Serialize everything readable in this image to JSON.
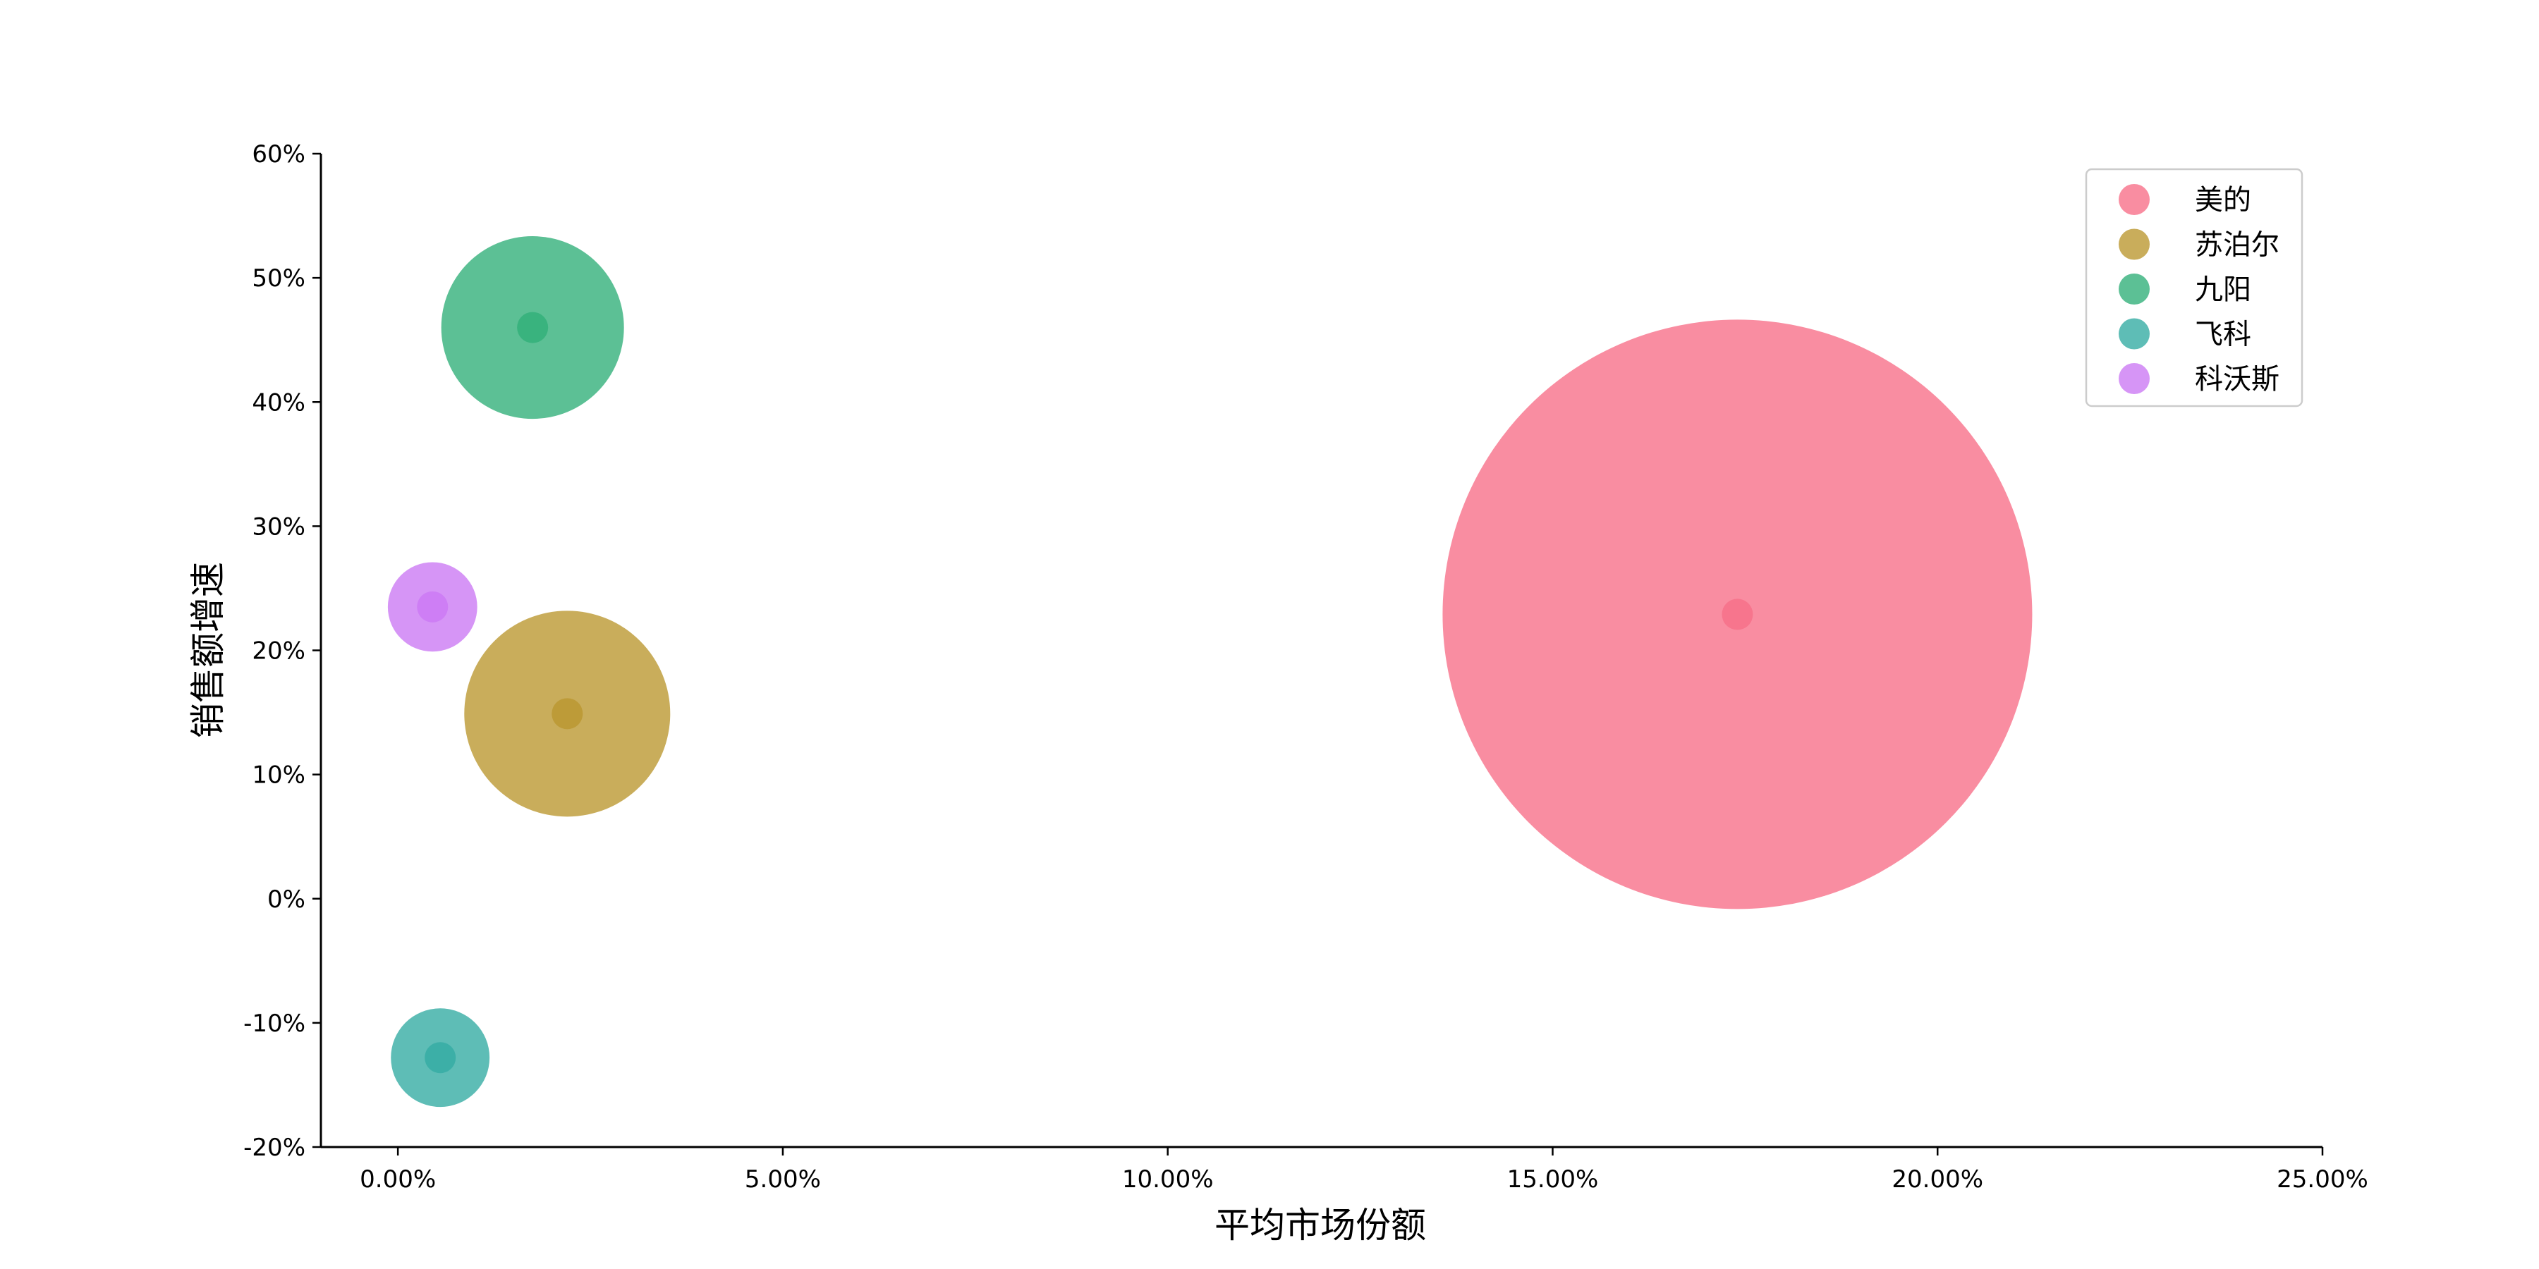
{
  "chart_data": {
    "type": "scatter",
    "title": "",
    "xlabel": "平均市场份额",
    "ylabel": "销售额增速",
    "xlim": [
      -1.0,
      25.0
    ],
    "ylim": [
      -20,
      60
    ],
    "xticks": [
      0,
      5,
      10,
      15,
      20,
      25
    ],
    "xtick_labels": [
      "0.00%",
      "5.00%",
      "10.00%",
      "15.00%",
      "20.00%",
      "25.00%"
    ],
    "yticks": [
      -20,
      -10,
      0,
      10,
      20,
      30,
      40,
      50,
      60
    ],
    "ytick_labels": [
      "-20%",
      "-10%",
      "0%",
      "10%",
      "20%",
      "30%",
      "40%",
      "50%",
      "60%"
    ],
    "x_unit": "%",
    "y_unit": "%",
    "grid": false,
    "legend_position": "top-right",
    "bubble_size_scale": "relative",
    "series": [
      {
        "name": "美的",
        "x": 17.4,
        "y": 22.9,
        "size": 100,
        "color": "#f77189"
      },
      {
        "name": "苏泊尔",
        "x": 2.2,
        "y": 14.9,
        "size": 12.2,
        "color": "#bb9832"
      },
      {
        "name": "九阳",
        "x": 1.75,
        "y": 46.0,
        "size": 9.6,
        "color": "#33b07a"
      },
      {
        "name": "飞科",
        "x": 0.55,
        "y": -12.8,
        "size": 2.8,
        "color": "#36ada4"
      },
      {
        "name": "科沃斯",
        "x": 0.45,
        "y": 23.5,
        "size": 2.3,
        "color": "#cc7af4"
      }
    ]
  }
}
